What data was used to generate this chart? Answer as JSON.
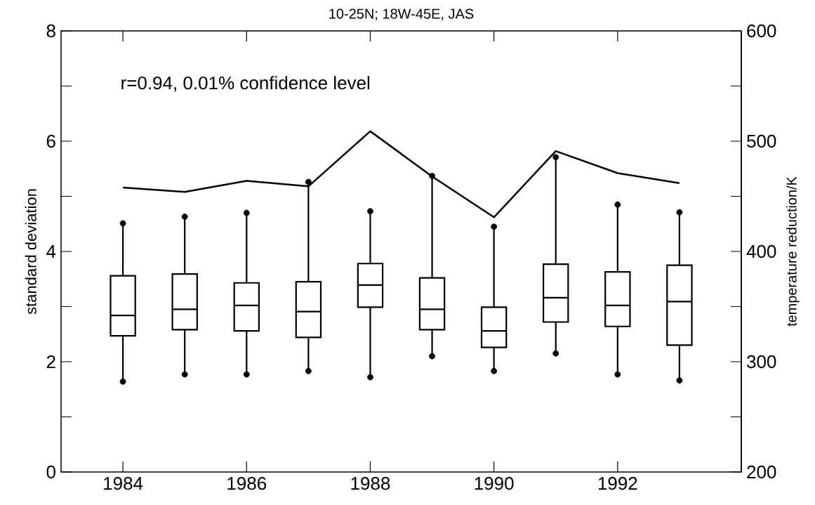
{
  "chart_data": {
    "type": "box",
    "title": "10-25N; 18W-45E, JAS",
    "ylabel": "standard deviation",
    "y2label": "temperature reduction/K",
    "annotations": [
      "r=0.94, 0.01% confidence level"
    ],
    "x": [
      1984,
      1985,
      1986,
      1987,
      1988,
      1989,
      1990,
      1991,
      1992,
      1993
    ],
    "xlim": [
      1983,
      1994
    ],
    "xticks": [
      1984,
      1986,
      1988,
      1990,
      1992
    ],
    "ylim": [
      0,
      8
    ],
    "yticks": [
      0,
      {
        "value": 1,
        "label": null
      },
      2,
      {
        "value": 3,
        "label": null
      },
      4,
      {
        "value": 5,
        "label": null
      },
      6,
      {
        "value": 7,
        "label": null
      },
      8
    ],
    "y2lim": [
      200,
      600
    ],
    "y2ticks": [
      200,
      {
        "value": 250,
        "label": null
      },
      300,
      {
        "value": 350,
        "label": null
      },
      400,
      {
        "value": 450,
        "label": null
      },
      500,
      {
        "value": 550,
        "label": null
      },
      600
    ],
    "series": [
      {
        "color": "#000000",
        "boxes": [
          {
            "low": 1.64,
            "q1": 2.47,
            "median": 2.84,
            "q3": 3.56,
            "high": 4.51
          },
          {
            "low": 1.77,
            "q1": 2.58,
            "median": 2.95,
            "q3": 3.59,
            "high": 4.63
          },
          {
            "low": 1.77,
            "q1": 2.56,
            "median": 3.02,
            "q3": 3.43,
            "high": 4.7
          },
          {
            "low": 1.83,
            "q1": 2.44,
            "median": 2.91,
            "q3": 3.45,
            "high": 5.26
          },
          {
            "low": 1.72,
            "q1": 2.99,
            "median": 3.39,
            "q3": 3.78,
            "high": 4.73
          },
          {
            "low": 2.1,
            "q1": 2.58,
            "median": 2.95,
            "q3": 3.52,
            "high": 5.37
          },
          {
            "low": 1.83,
            "q1": 2.26,
            "median": 2.56,
            "q3": 2.99,
            "high": 4.45
          },
          {
            "low": 2.15,
            "q1": 2.72,
            "median": 3.16,
            "q3": 3.77,
            "high": 5.71
          },
          {
            "low": 1.77,
            "q1": 2.64,
            "median": 3.02,
            "q3": 3.63,
            "high": 4.85
          },
          {
            "low": 1.66,
            "q1": 2.3,
            "median": 3.09,
            "q3": 3.75,
            "high": 4.71
          }
        ]
      },
      {
        "type": "scatter",
        "color": "#000000",
        "marker": "circle",
        "values": [
          1.64,
          1.77,
          1.77,
          1.83,
          1.72,
          2.1,
          1.83,
          2.15,
          1.77,
          1.66
        ]
      },
      {
        "type": "scatter",
        "color": "#000000",
        "marker": "circle",
        "values": [
          4.51,
          4.63,
          4.7,
          5.26,
          4.73,
          5.37,
          4.45,
          5.71,
          4.85,
          4.71
        ]
      },
      {
        "type": "line",
        "axis": "y2",
        "color": "#000000",
        "values": [
          458,
          454,
          464,
          459,
          509,
          468,
          431,
          491,
          471,
          462
        ]
      }
    ]
  }
}
